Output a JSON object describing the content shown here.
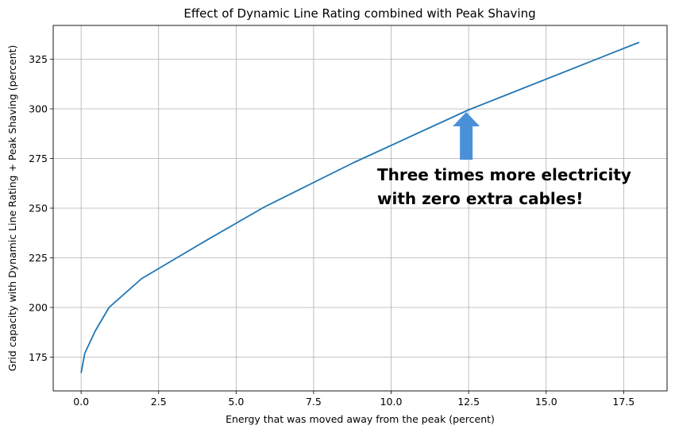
{
  "chart_data": {
    "type": "line",
    "title": "Effect of Dynamic Line Rating combined with Peak Shaving",
    "xlabel": "Energy that was moved away from the peak (percent)",
    "ylabel": "Grid capacity with Dynamic Line Rating + Peak Shaving (percent)",
    "xlim": [
      -0.9,
      18.9
    ],
    "ylim": [
      158,
      342
    ],
    "x_ticks": [
      0.0,
      2.5,
      5.0,
      7.5,
      10.0,
      12.5,
      15.0,
      17.5
    ],
    "x_tick_labels": [
      "0.0",
      "2.5",
      "5.0",
      "7.5",
      "10.0",
      "12.5",
      "15.0",
      "17.5"
    ],
    "y_ticks": [
      175,
      200,
      225,
      250,
      275,
      300,
      325
    ],
    "y_tick_labels": [
      "175",
      "200",
      "225",
      "250",
      "275",
      "300",
      "325"
    ],
    "grid": true,
    "series": [
      {
        "color": "#1f77b4",
        "x": [
          0.0,
          0.12,
          0.45,
          0.9,
          1.95,
          3.9,
          5.9,
          8.8,
          12.5,
          18.0
        ],
        "y": [
          167,
          177,
          188,
          200,
          214.5,
          232.5,
          250.5,
          273,
          299.5,
          333.5
        ]
      }
    ],
    "annotation": {
      "lines": [
        "Three times more electricity",
        "with zero extra cables!"
      ],
      "arrow_color": "#4a90d9",
      "arrow_points_to": {
        "x": 12.5,
        "y": 299.5
      }
    }
  }
}
